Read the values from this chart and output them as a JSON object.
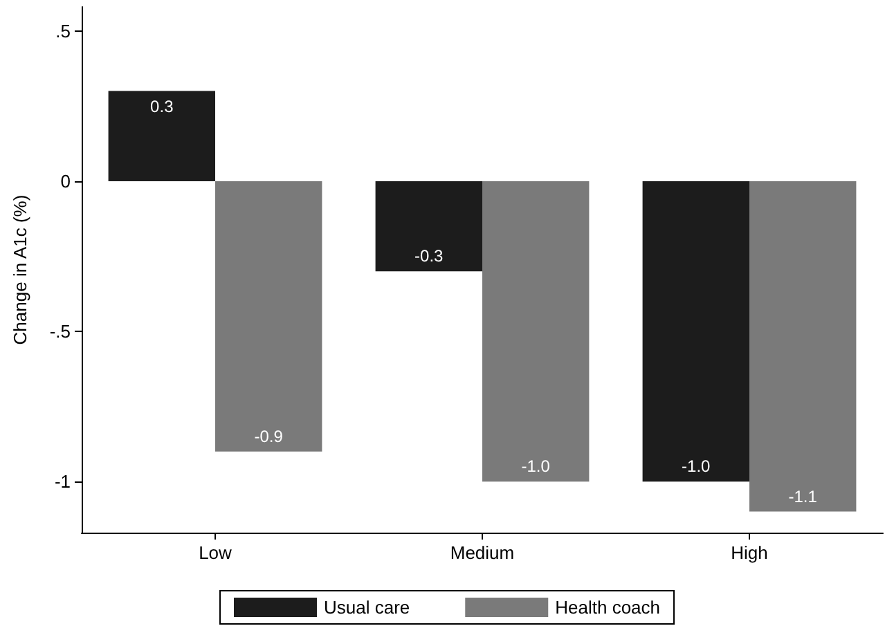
{
  "chart_data": {
    "type": "bar",
    "ylabel": "Change in A1c (%)",
    "categories": [
      "Low",
      "Medium",
      "High"
    ],
    "series": [
      {
        "name": "Usual care",
        "color": "#1c1c1c",
        "values": [
          0.3,
          -0.3,
          -1.0
        ],
        "value_labels": [
          "0.3",
          "-0.3",
          "-1.0"
        ]
      },
      {
        "name": "Health coach",
        "color": "#7a7a7a",
        "values": [
          -0.9,
          -1.0,
          -1.1
        ],
        "value_labels": [
          "-0.9",
          "-1.0",
          "-1.1"
        ]
      }
    ],
    "ylim": [
      -1.17,
      0.58
    ],
    "yticks": [
      {
        "value": 0.5,
        "label": ".5"
      },
      0,
      {
        "value": -0.5,
        "label": "-.5"
      },
      -1
    ],
    "grid": false,
    "legend": "bottom"
  }
}
